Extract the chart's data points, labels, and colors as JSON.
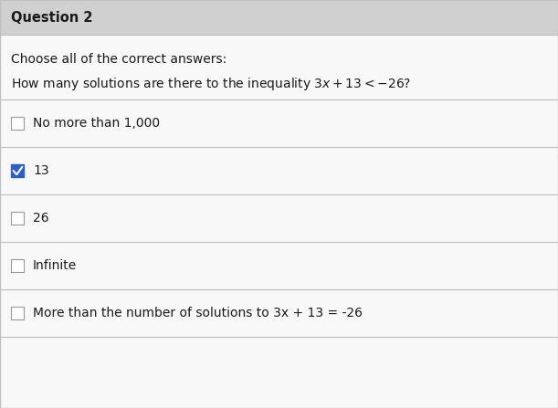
{
  "title": "Question 2",
  "instruction": "Choose all of the correct answers:",
  "question_plain": "How many solutions are there to the inequality ",
  "question_math": "3x + 13 < -26",
  "question_suffix": "?",
  "options": [
    {
      "text": "No more than 1,000",
      "checked": false
    },
    {
      "text": "13",
      "checked": true
    },
    {
      "text": "26",
      "checked": false
    },
    {
      "text": "Infinite",
      "checked": false
    },
    {
      "text": "More than the number of solutions to 3x + 13 = -26",
      "checked": false
    }
  ],
  "bg_color": "#d8d8d8",
  "header_bg": "#d0d0d0",
  "white_bg": "#f8f8f8",
  "divider_color": "#c0c0c0",
  "checkbox_checked_color": "#2f5fc4",
  "checkbox_unchecked_color": "#ffffff",
  "checkbox_border_color": "#999999",
  "title_fontsize": 10.5,
  "instruction_fontsize": 10,
  "question_fontsize": 10,
  "option_fontsize": 10
}
